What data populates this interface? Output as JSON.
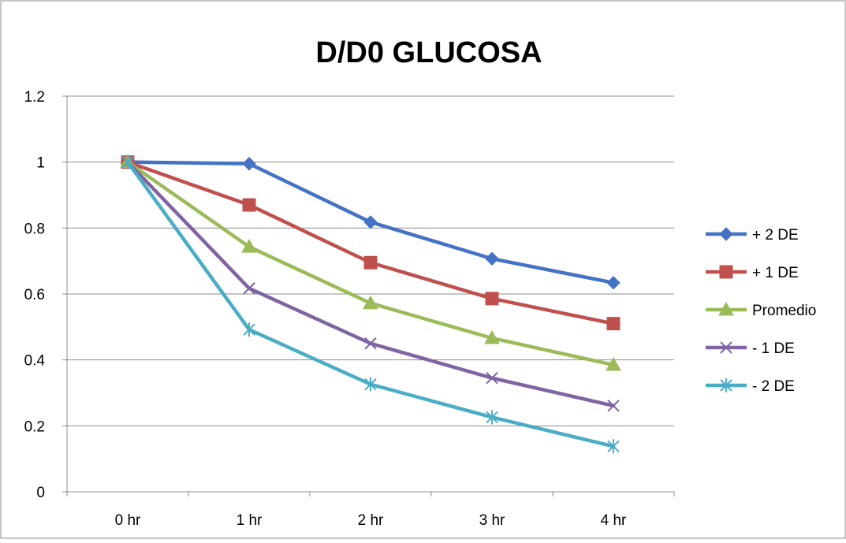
{
  "chart_data": {
    "type": "line",
    "title": "D/D0 GLUCOSA",
    "xlabel": "",
    "ylabel": "",
    "categories": [
      "0 hr",
      "1 hr",
      "2 hr",
      "3 hr",
      "4 hr"
    ],
    "ylim": [
      0,
      1.2
    ],
    "yticks": [
      "0",
      "0.2",
      "0.4",
      "0.6",
      "0.8",
      "1",
      "1.2"
    ],
    "grid": "horizontal",
    "legend_position": "right",
    "series": [
      {
        "name": "+ 2 DE",
        "color": "#4472C4",
        "marker": "diamond",
        "values": [
          1.0,
          0.995,
          0.818,
          0.707,
          0.634
        ]
      },
      {
        "name": "+ 1 DE",
        "color": "#C0504D",
        "marker": "square",
        "values": [
          1.0,
          0.87,
          0.695,
          0.586,
          0.51
        ]
      },
      {
        "name": "Promedio",
        "color": "#9BBB59",
        "marker": "triangle",
        "values": [
          1.0,
          0.743,
          0.572,
          0.466,
          0.385
        ]
      },
      {
        "name": "- 1 DE",
        "color": "#8064A2",
        "marker": "x",
        "values": [
          1.0,
          0.617,
          0.45,
          0.345,
          0.261
        ]
      },
      {
        "name": "- 2 DE",
        "color": "#4BACC6",
        "marker": "star",
        "values": [
          1.0,
          0.492,
          0.326,
          0.226,
          0.138
        ]
      }
    ]
  }
}
